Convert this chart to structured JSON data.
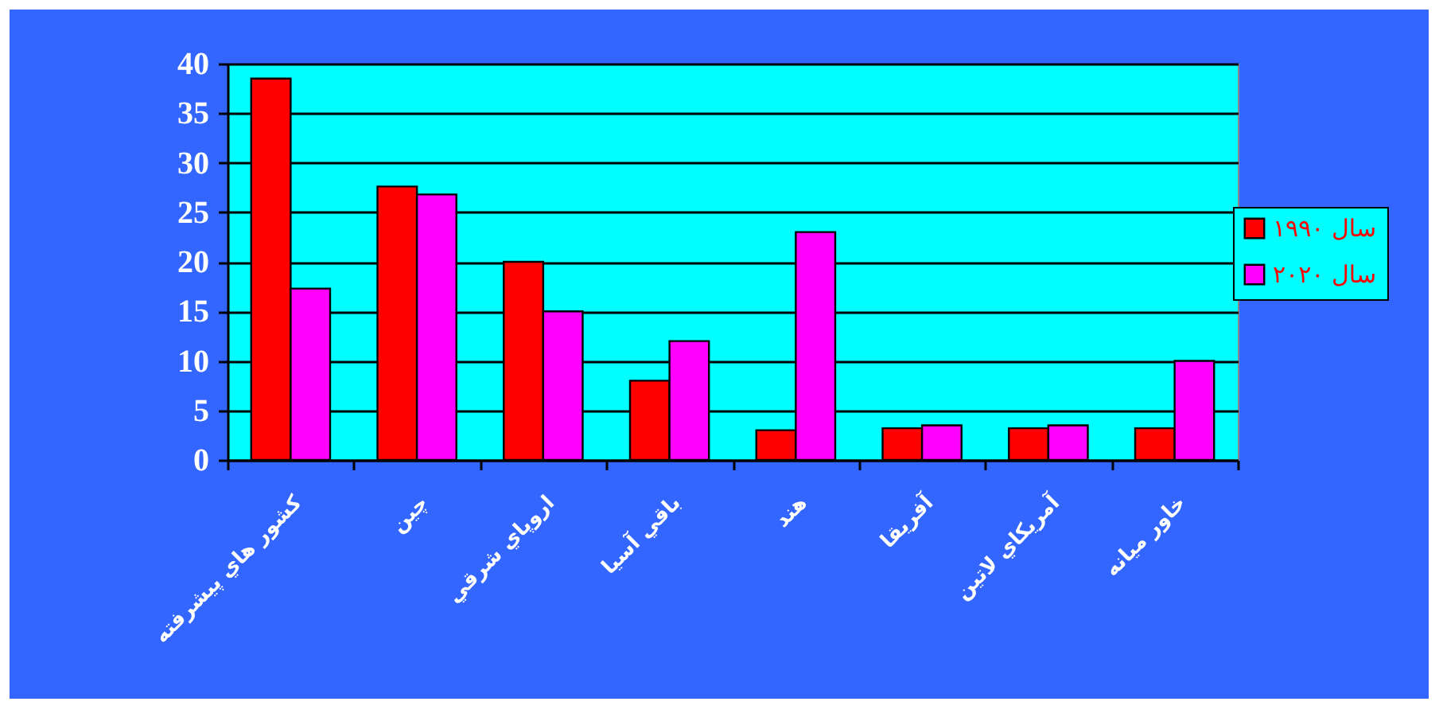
{
  "chart_data": {
    "type": "bar",
    "categories": [
      "كشور هاي پيشرفته",
      "چين",
      "اروپاي شرقي",
      "باقي آسيا",
      "هند",
      "آفريقا",
      "آمريكاي لاتين",
      "خاور ميانه"
    ],
    "series": [
      {
        "name": "سال ۱۹۹۰",
        "color": "#ff0000",
        "values": [
          38.5,
          27.6,
          20,
          8,
          3,
          3.2,
          3.2,
          3.2
        ]
      },
      {
        "name": "سال ۲۰۲۰",
        "color": "#ff00ff",
        "values": [
          17.3,
          26.8,
          15,
          12,
          23,
          3.5,
          3.5,
          10
        ]
      }
    ],
    "ylim": [
      0,
      40
    ],
    "yticks": [
      0,
      5,
      10,
      15,
      20,
      25,
      30,
      35,
      40
    ],
    "grid": "y",
    "legend": "right"
  }
}
